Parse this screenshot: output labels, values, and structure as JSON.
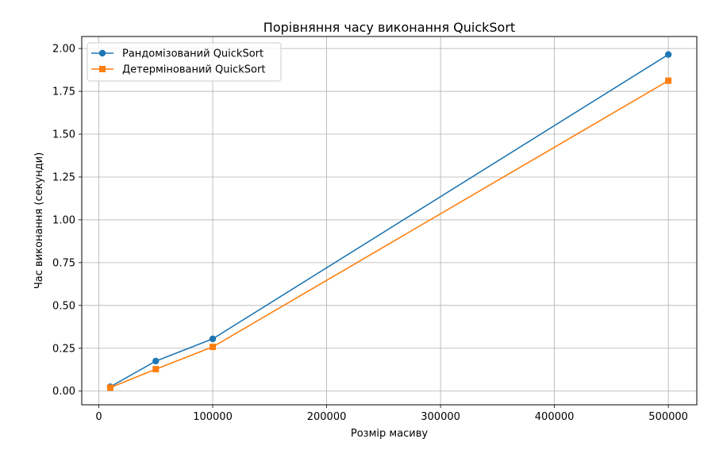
{
  "chart_data": {
    "type": "line",
    "title": "Порівняння часу виконання QuickSort",
    "xlabel": "Розмір масиву",
    "ylabel": "Час виконання (секунди)",
    "xlim": [
      -15000,
      525000
    ],
    "ylim": [
      -0.08,
      2.07
    ],
    "xticks": [
      0,
      100000,
      200000,
      300000,
      400000,
      500000
    ],
    "xtick_labels": [
      "0",
      "100000",
      "200000",
      "300000",
      "400000",
      "500000"
    ],
    "yticks": [
      0.0,
      0.25,
      0.5,
      0.75,
      1.0,
      1.25,
      1.5,
      1.75,
      2.0
    ],
    "ytick_labels": [
      "0.00",
      "0.25",
      "0.50",
      "0.75",
      "1.00",
      "1.25",
      "1.50",
      "1.75",
      "2.00"
    ],
    "grid": true,
    "legend_position": "top-left",
    "x": [
      10000,
      50000,
      100000,
      500000
    ],
    "series": [
      {
        "name": "Рандомізований QuickSort",
        "values": [
          0.025,
          0.175,
          0.305,
          1.965
        ],
        "color": "#1f77b4",
        "marker": "circle"
      },
      {
        "name": "Детермінований QuickSort",
        "values": [
          0.02,
          0.128,
          0.258,
          1.812
        ],
        "color": "#ff7f0e",
        "marker": "square"
      }
    ]
  }
}
